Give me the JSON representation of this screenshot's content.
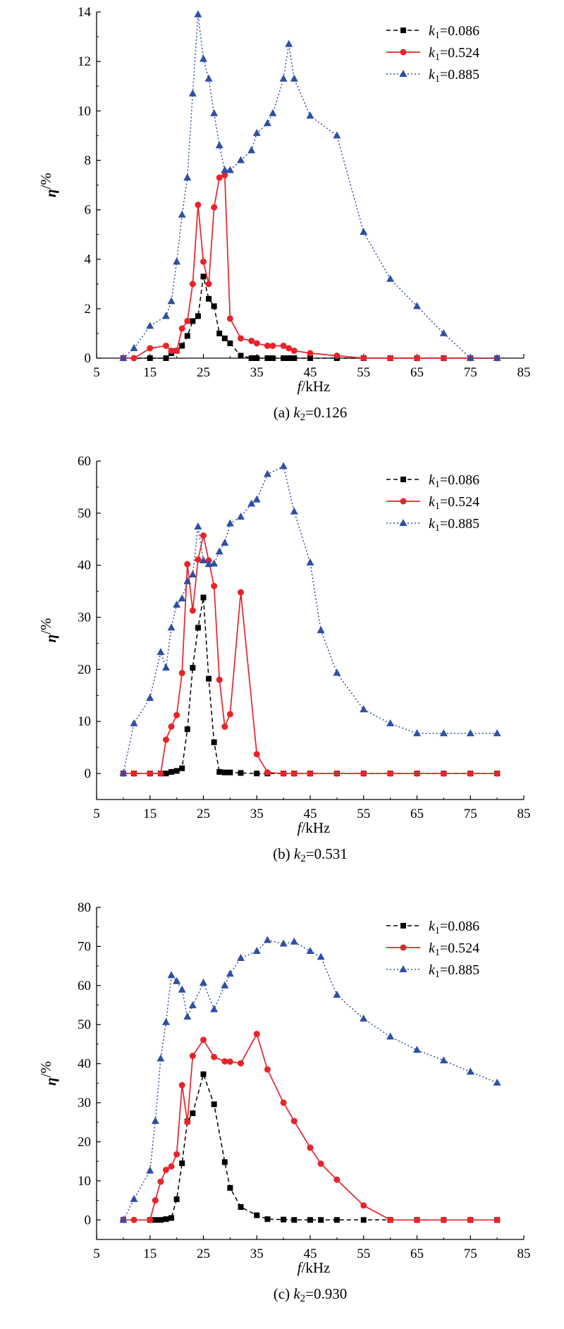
{
  "chart_data": [
    {
      "type": "line",
      "caption": {
        "prefix": "(a) ",
        "var": "k",
        "sub": "2",
        "value": "=0.126"
      },
      "xlabel": {
        "var": "f",
        "unit": "/kHz"
      },
      "ylabel": {
        "var": "η",
        "unit": "/%"
      },
      "xlim": [
        5,
        85
      ],
      "ylim": [
        0,
        14
      ],
      "xticks": [
        5,
        15,
        25,
        35,
        45,
        55,
        65,
        75,
        85
      ],
      "yticks": [
        0,
        2,
        4,
        6,
        8,
        10,
        12,
        14
      ],
      "legend": "top-right",
      "series": [
        {
          "name": "k1=0.086",
          "var": "k",
          "sub": "1",
          "value": "=0.086",
          "color": "#000000",
          "marker": "square",
          "dash": "dashed",
          "x": [
            10,
            15,
            18,
            19,
            20,
            21,
            22,
            23,
            24,
            25,
            26,
            27,
            28,
            29,
            30,
            32,
            34,
            35,
            37,
            38,
            40,
            41,
            42,
            45,
            50,
            55,
            60,
            65,
            70,
            75,
            80
          ],
          "y": [
            0,
            0,
            0,
            0.2,
            0.3,
            0.5,
            0.9,
            1.5,
            1.7,
            3.3,
            2.4,
            2.1,
            1.0,
            0.8,
            0.6,
            0.1,
            0,
            0,
            0,
            0,
            0,
            0,
            0,
            0,
            0,
            0,
            0,
            0,
            0,
            0,
            0
          ]
        },
        {
          "name": "k1=0.524",
          "var": "k",
          "sub": "1",
          "value": "=0.524",
          "color": "#e8232a",
          "marker": "circle",
          "dash": "solid",
          "x": [
            10,
            12,
            15,
            18,
            19,
            20,
            21,
            22,
            23,
            24,
            25,
            26,
            27,
            28,
            29,
            30,
            32,
            34,
            35,
            37,
            38,
            40,
            41,
            42,
            45,
            50,
            55,
            60,
            65,
            70,
            75,
            80
          ],
          "y": [
            0,
            0,
            0.4,
            0.5,
            0.3,
            0.3,
            1.2,
            1.5,
            3.0,
            6.2,
            3.9,
            3.0,
            6.1,
            7.3,
            7.4,
            1.6,
            0.8,
            0.7,
            0.6,
            0.5,
            0.5,
            0.5,
            0.4,
            0.3,
            0.2,
            0.1,
            0,
            0,
            0,
            0,
            0,
            0
          ]
        },
        {
          "name": "k1=0.885",
          "var": "k",
          "sub": "1",
          "value": "=0.885",
          "color": "#2e4fa3",
          "marker": "triangle",
          "dash": "dotted",
          "x": [
            10,
            12,
            15,
            18,
            19,
            20,
            21,
            22,
            23,
            24,
            25,
            26,
            27,
            28,
            29,
            30,
            32,
            34,
            35,
            37,
            38,
            40,
            41,
            42,
            45,
            50,
            55,
            60,
            65,
            70,
            75,
            80
          ],
          "y": [
            0,
            0.4,
            1.3,
            1.7,
            2.3,
            3.9,
            5.8,
            7.3,
            10.7,
            13.9,
            12.1,
            11.3,
            9.9,
            8.6,
            7.6,
            7.6,
            8.0,
            8.4,
            9.1,
            9.5,
            9.9,
            11.3,
            12.7,
            11.3,
            9.8,
            9.0,
            5.1,
            3.2,
            2.1,
            1.0,
            0,
            0
          ]
        }
      ]
    },
    {
      "type": "line",
      "caption": {
        "prefix": "(b) ",
        "var": "k",
        "sub": "2",
        "value": "=0.531"
      },
      "xlabel": {
        "var": "f",
        "unit": "/kHz"
      },
      "ylabel": {
        "var": "η",
        "unit": "/%"
      },
      "xlim": [
        5,
        85
      ],
      "ylim": [
        -5,
        60
      ],
      "xticks": [
        5,
        15,
        25,
        35,
        45,
        55,
        65,
        75,
        85
      ],
      "yticks": [
        0,
        10,
        20,
        30,
        40,
        50,
        60
      ],
      "legend": "top-right",
      "series": [
        {
          "name": "k1=0.086",
          "var": "k",
          "sub": "1",
          "value": "=0.086",
          "color": "#000000",
          "marker": "square",
          "dash": "dashed",
          "x": [
            10,
            12,
            15,
            17,
            18,
            19,
            20,
            21,
            22,
            23,
            24,
            25,
            26,
            27,
            28,
            29,
            30,
            32,
            35,
            37,
            40,
            42,
            45,
            50,
            55,
            60,
            65,
            70,
            75,
            80
          ],
          "y": [
            0,
            0,
            0,
            0,
            0,
            0.3,
            0.5,
            1.0,
            8.5,
            20.3,
            28.0,
            33.8,
            18.2,
            6.0,
            0.3,
            0.2,
            0.2,
            0.1,
            0,
            0,
            0,
            0,
            0,
            0,
            0,
            0,
            0,
            0,
            0,
            0
          ]
        },
        {
          "name": "k1=0.524",
          "var": "k",
          "sub": "1",
          "value": "=0.524",
          "color": "#e8232a",
          "marker": "circle",
          "dash": "solid",
          "x": [
            10,
            12,
            15,
            17,
            18,
            19,
            20,
            21,
            22,
            23,
            24,
            25,
            26,
            27,
            28,
            29,
            30,
            32,
            35,
            37,
            40,
            42,
            45,
            50,
            55,
            60,
            65,
            70,
            75,
            80
          ],
          "y": [
            0,
            0,
            0,
            0,
            6.5,
            9.0,
            11.2,
            19.3,
            40.2,
            31.3,
            41.1,
            45.7,
            40.9,
            36.0,
            18.0,
            9.0,
            11.4,
            34.8,
            3.7,
            0.2,
            0,
            0,
            0,
            0,
            0,
            0,
            0,
            0,
            0,
            0
          ]
        },
        {
          "name": "k1=0.885",
          "var": "k",
          "sub": "1",
          "value": "=0.885",
          "color": "#2e4fa3",
          "marker": "triangle",
          "dash": "dotted",
          "x": [
            10,
            12,
            15,
            17,
            18,
            19,
            20,
            21,
            22,
            23,
            24,
            25,
            26,
            27,
            28,
            29,
            30,
            32,
            34,
            35,
            37,
            40,
            42,
            45,
            47,
            50,
            55,
            60,
            65,
            70,
            75,
            80
          ],
          "y": [
            0,
            9.6,
            14.5,
            23.3,
            20.3,
            28.0,
            32.4,
            33.6,
            36.9,
            38.2,
            47.4,
            40.9,
            40.2,
            40.3,
            42.6,
            44.3,
            48.0,
            49.3,
            51.8,
            52.6,
            57.5,
            59.0,
            50.3,
            40.5,
            27.5,
            19.3,
            12.3,
            9.6,
            7.7,
            7.7,
            7.7,
            7.7
          ]
        }
      ]
    },
    {
      "type": "line",
      "caption": {
        "prefix": "(c) ",
        "var": "k",
        "sub": "2",
        "value": "=0.930"
      },
      "xlabel": {
        "var": "f",
        "unit": "/kHz"
      },
      "ylabel": {
        "var": "η",
        "unit": "/%"
      },
      "xlim": [
        5,
        85
      ],
      "ylim": [
        -5,
        80
      ],
      "xticks": [
        5,
        15,
        25,
        35,
        45,
        55,
        65,
        75,
        85
      ],
      "yticks": [
        0,
        10,
        20,
        30,
        40,
        50,
        60,
        70,
        80
      ],
      "legend": "top-right",
      "series": [
        {
          "name": "k1=0.086",
          "var": "k",
          "sub": "1",
          "value": "=0.086",
          "color": "#000000",
          "marker": "square",
          "dash": "dashed",
          "x": [
            10,
            15,
            16,
            17,
            18,
            19,
            20,
            21,
            22,
            23,
            25,
            27,
            29,
            30,
            32,
            35,
            37,
            40,
            42,
            45,
            47,
            50,
            55,
            60,
            65,
            70,
            75,
            80
          ],
          "y": [
            0,
            0,
            0,
            0,
            0.2,
            0.5,
            5.3,
            14.5,
            25.2,
            27.3,
            37.3,
            29.6,
            14.8,
            8.2,
            3.3,
            1.2,
            0.2,
            0.1,
            0,
            0,
            0,
            0,
            0,
            0,
            0,
            0,
            0,
            0
          ]
        },
        {
          "name": "k1=0.524",
          "var": "k",
          "sub": "1",
          "value": "=0.524",
          "color": "#e8232a",
          "marker": "circle",
          "dash": "solid",
          "x": [
            10,
            12,
            15,
            16,
            17,
            18,
            19,
            20,
            21,
            22,
            23,
            25,
            27,
            29,
            30,
            32,
            35,
            37,
            40,
            42,
            45,
            47,
            50,
            55,
            60,
            65,
            70,
            75,
            80
          ],
          "y": [
            0,
            0,
            0,
            5.0,
            9.8,
            12.8,
            13.7,
            16.8,
            34.5,
            25.1,
            42.0,
            46.1,
            41.7,
            40.6,
            40.5,
            40.1,
            47.6,
            38.5,
            30.0,
            25.3,
            18.5,
            14.4,
            10.3,
            3.7,
            0,
            0,
            0,
            0,
            0
          ]
        },
        {
          "name": "k1=0.885",
          "var": "k",
          "sub": "1",
          "value": "=0.885",
          "color": "#2e4fa3",
          "marker": "triangle",
          "dash": "dotted",
          "x": [
            10,
            12,
            15,
            16,
            17,
            18,
            19,
            20,
            21,
            22,
            23,
            25,
            27,
            29,
            30,
            32,
            35,
            37,
            40,
            42,
            45,
            47,
            50,
            55,
            60,
            65,
            70,
            75,
            80
          ],
          "y": [
            0,
            5.3,
            12.6,
            25.3,
            41.3,
            50.6,
            62.6,
            61.1,
            58.9,
            52.0,
            54.9,
            60.7,
            53.9,
            60.0,
            63.0,
            67.0,
            68.8,
            71.6,
            70.7,
            71.2,
            68.8,
            67.3,
            57.6,
            51.5,
            46.9,
            43.5,
            40.8,
            37.9,
            35.1
          ]
        }
      ]
    }
  ]
}
